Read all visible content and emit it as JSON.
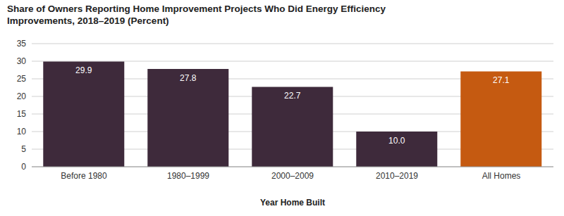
{
  "chart_data": {
    "type": "bar",
    "title": "Share of Owners Reporting Home Improvement Projects Who Did Energy Efficiency Improvements, 2018–2019 (Percent)",
    "categories": [
      "Before 1980",
      "1980–1999",
      "2000–2009",
      "2010–2019",
      "All Homes"
    ],
    "values": [
      29.9,
      27.8,
      22.7,
      10.0,
      27.1
    ],
    "value_labels": [
      "29.9",
      "27.8",
      "22.7",
      "10.0",
      "27.1"
    ],
    "colors": [
      "#3e2a3b",
      "#3e2a3b",
      "#3e2a3b",
      "#3e2a3b",
      "#c55a11"
    ],
    "x_label": "Year Home Built",
    "ylim": [
      0,
      35
    ],
    "yticks": [
      0,
      5,
      10,
      15,
      20,
      25,
      30,
      35
    ],
    "grid": true,
    "data_labels": true
  }
}
